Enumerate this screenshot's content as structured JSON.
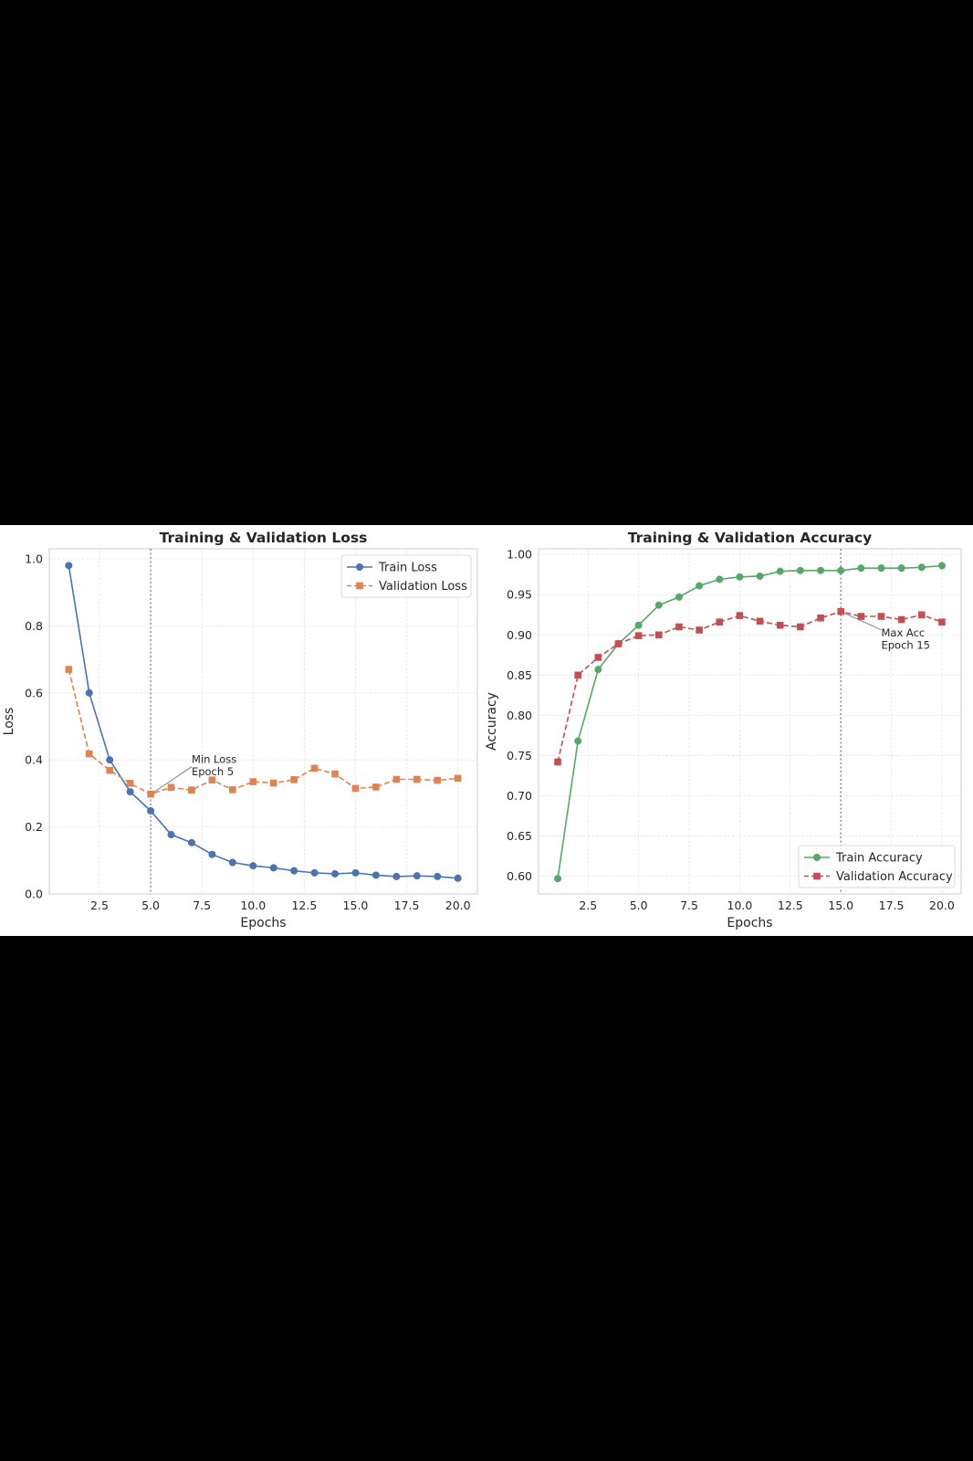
{
  "chart_data": [
    {
      "type": "line",
      "title": "Training & Validation Loss",
      "xlabel": "Epochs",
      "ylabel": "Loss",
      "xlim": [
        0.05,
        20.95
      ],
      "ylim": [
        0.0,
        1.03
      ],
      "xticks": [
        2.5,
        5.0,
        7.5,
        10.0,
        12.5,
        15.0,
        17.5,
        20.0
      ],
      "xtick_labels": [
        "2.5",
        "5.0",
        "7.5",
        "10.0",
        "12.5",
        "15.0",
        "17.5",
        "20.0"
      ],
      "yticks": [
        0.0,
        0.2,
        0.4,
        0.6,
        0.8,
        1.0
      ],
      "ytick_labels": [
        "0.0",
        "0.2",
        "0.4",
        "0.6",
        "0.8",
        "1.0"
      ],
      "grid": true,
      "legend_position": "top-right",
      "x": [
        1,
        2,
        3,
        4,
        5,
        6,
        7,
        8,
        9,
        10,
        11,
        12,
        13,
        14,
        15,
        16,
        17,
        18,
        19,
        20
      ],
      "series": [
        {
          "name": "Train Loss",
          "color": "#4c72b0",
          "marker": "circle",
          "linestyle": "solid",
          "values": [
            0.98,
            0.6,
            0.4,
            0.305,
            0.248,
            0.177,
            0.153,
            0.118,
            0.094,
            0.084,
            0.078,
            0.069,
            0.063,
            0.06,
            0.063,
            0.056,
            0.052,
            0.054,
            0.052,
            0.047
          ]
        },
        {
          "name": "Validation Loss",
          "color": "#dd8452",
          "marker": "square",
          "linestyle": "dashed",
          "values": [
            0.67,
            0.418,
            0.369,
            0.33,
            0.298,
            0.318,
            0.31,
            0.34,
            0.311,
            0.335,
            0.331,
            0.341,
            0.375,
            0.358,
            0.315,
            0.319,
            0.342,
            0.342,
            0.339,
            0.345
          ]
        }
      ],
      "vline": {
        "x": 5,
        "color": "#808080"
      },
      "annotation": {
        "lines": [
          "Min Loss",
          "Epoch 5"
        ],
        "point": [
          5,
          0.298
        ],
        "text_at": [
          7.0,
          0.385
        ]
      }
    },
    {
      "type": "line",
      "title": "Training & Validation Accuracy",
      "xlabel": "Epochs",
      "ylabel": "Accuracy",
      "xlim": [
        0.05,
        20.95
      ],
      "ylim": [
        0.578,
        1.007
      ],
      "xticks": [
        2.5,
        5.0,
        7.5,
        10.0,
        12.5,
        15.0,
        17.5,
        20.0
      ],
      "xtick_labels": [
        "2.5",
        "5.0",
        "7.5",
        "10.0",
        "12.5",
        "15.0",
        "17.5",
        "20.0"
      ],
      "yticks": [
        0.6,
        0.65,
        0.7,
        0.75,
        0.8,
        0.85,
        0.9,
        0.95,
        1.0
      ],
      "ytick_labels": [
        "0.60",
        "0.65",
        "0.70",
        "0.75",
        "0.80",
        "0.85",
        "0.90",
        "0.95",
        "1.00"
      ],
      "grid": true,
      "legend_position": "bottom-right",
      "x": [
        1,
        2,
        3,
        4,
        5,
        6,
        7,
        8,
        9,
        10,
        11,
        12,
        13,
        14,
        15,
        16,
        17,
        18,
        19,
        20
      ],
      "series": [
        {
          "name": "Train Accuracy",
          "color": "#55a868",
          "marker": "circle",
          "linestyle": "solid",
          "values": [
            0.597,
            0.768,
            0.857,
            0.889,
            0.912,
            0.937,
            0.947,
            0.961,
            0.969,
            0.972,
            0.973,
            0.979,
            0.98,
            0.98,
            0.98,
            0.983,
            0.983,
            0.983,
            0.984,
            0.986
          ]
        },
        {
          "name": "Validation Accuracy",
          "color": "#c44e52",
          "marker": "square",
          "linestyle": "dashed",
          "values": [
            0.742,
            0.85,
            0.872,
            0.889,
            0.899,
            0.9,
            0.91,
            0.906,
            0.916,
            0.924,
            0.917,
            0.912,
            0.91,
            0.921,
            0.929,
            0.923,
            0.923,
            0.919,
            0.925,
            0.916
          ]
        }
      ],
      "vline": {
        "x": 15,
        "color": "#808080"
      },
      "annotation": {
        "lines": [
          "Max Acc",
          "Epoch 15"
        ],
        "point": [
          15,
          0.929
        ],
        "text_at": [
          17.0,
          0.896
        ]
      }
    }
  ]
}
